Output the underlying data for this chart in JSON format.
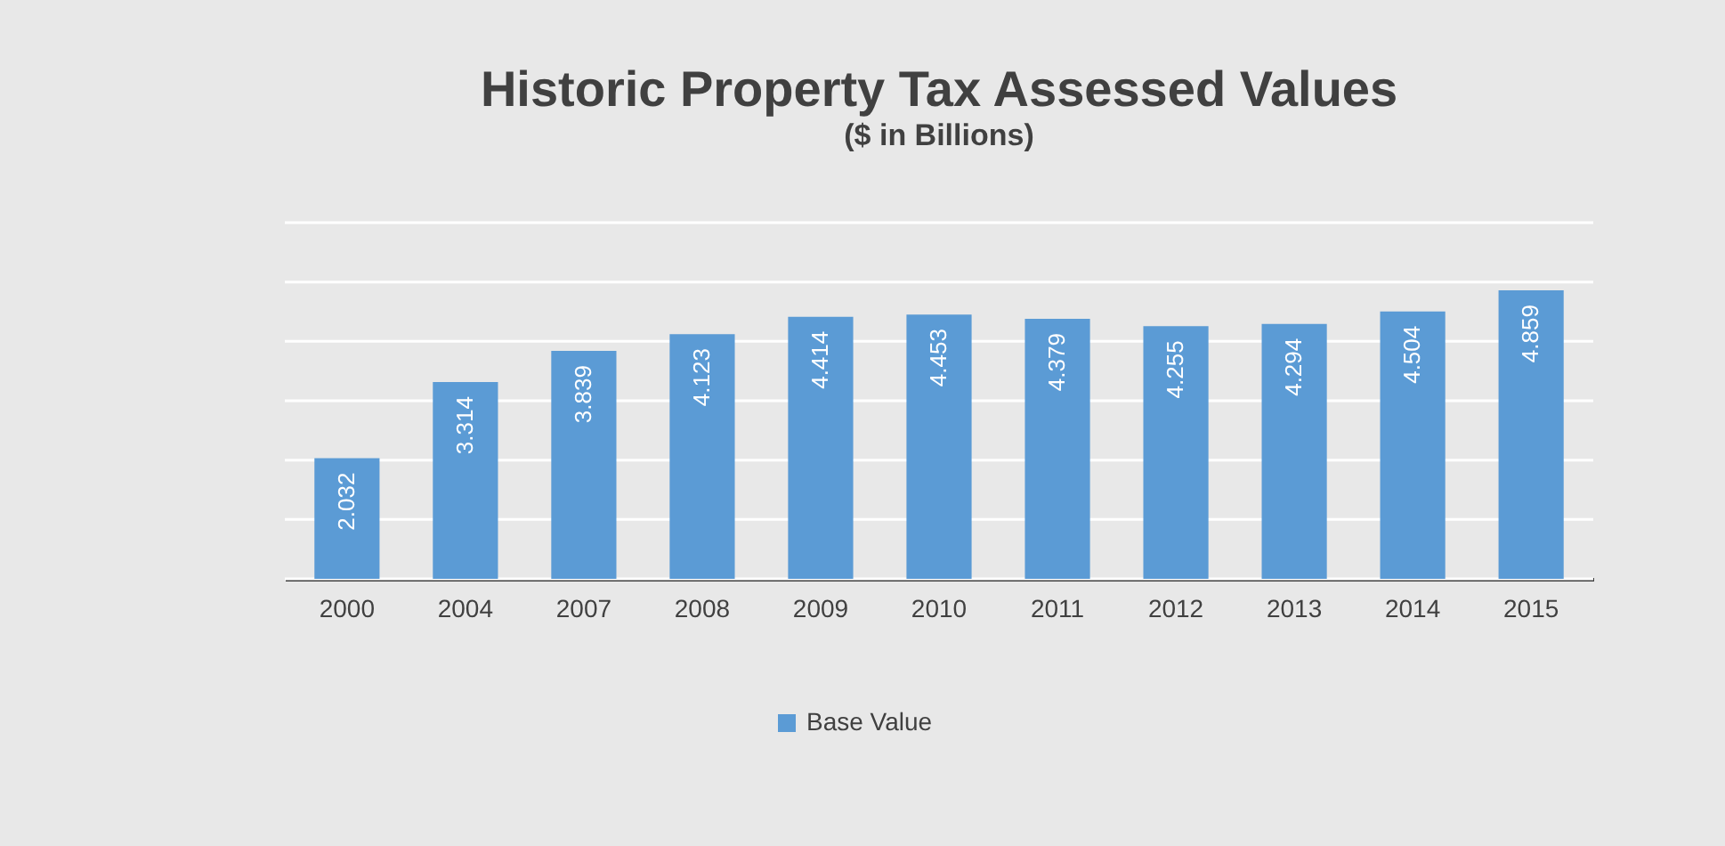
{
  "chart_data": {
    "type": "bar",
    "title": "Historic Property Tax Assessed Values",
    "subtitle": "($ in Billions)",
    "categories": [
      "2000",
      "2004",
      "2007",
      "2008",
      "2009",
      "2010",
      "2011",
      "2012",
      "2013",
      "2014",
      "2015"
    ],
    "series": [
      {
        "name": "Base Value",
        "color": "#5b9bd5",
        "values": [
          2.032,
          3.314,
          3.839,
          4.123,
          4.414,
          4.453,
          4.379,
          4.255,
          4.294,
          4.504,
          4.859
        ]
      }
    ],
    "ylim": [
      0,
      6
    ],
    "yticks": [
      {
        "value": 0,
        "label": null
      },
      {
        "value": 1,
        "label": null
      },
      {
        "value": 2,
        "label": null
      },
      {
        "value": 3,
        "label": null
      },
      {
        "value": 4,
        "label": null
      },
      {
        "value": 5,
        "label": null
      },
      {
        "value": 6,
        "label": null
      }
    ],
    "grid": "y",
    "tick_labels": "x",
    "data_labels": true,
    "legend": "bottom"
  }
}
